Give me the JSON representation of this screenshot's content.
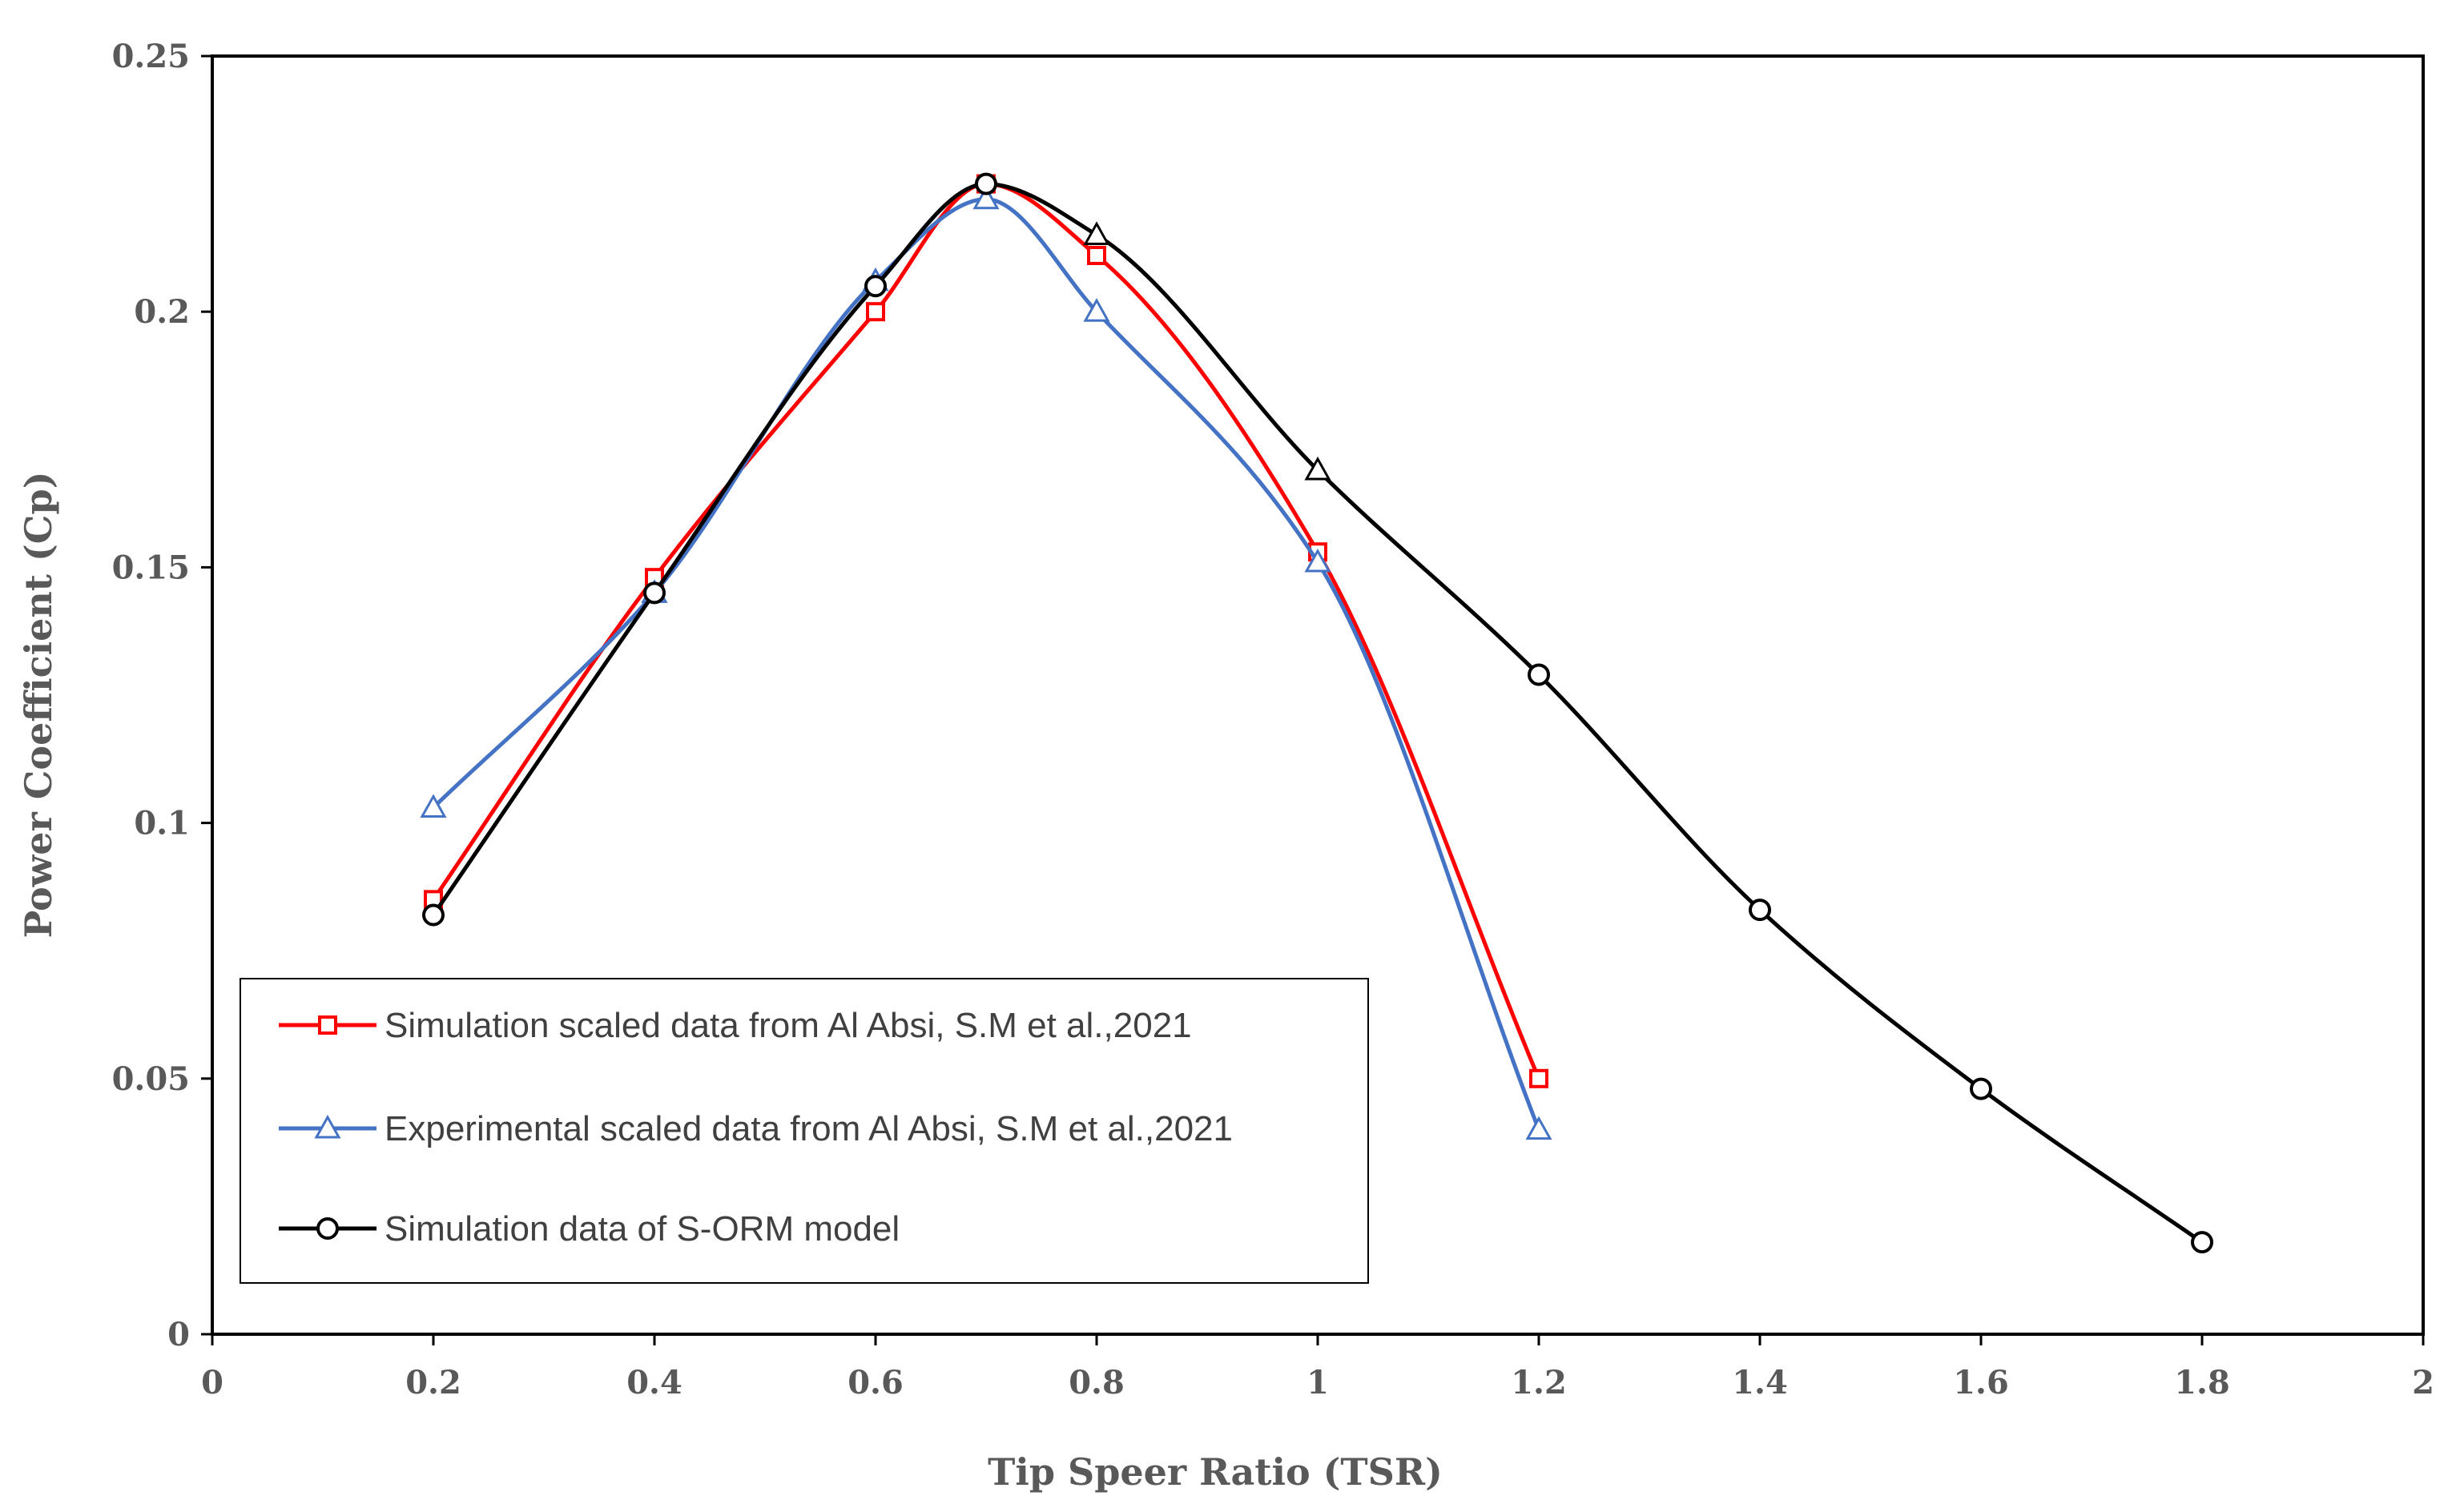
{
  "chart_data": {
    "type": "line",
    "title": "",
    "xlabel": "Tip Speer Ratio (TSR)",
    "ylabel": "Power Coefficient (Cp)",
    "xlim": [
      0,
      2
    ],
    "ylim": [
      0,
      0.25
    ],
    "x_ticks": [
      0,
      0.2,
      0.4,
      0.6,
      0.8,
      1,
      1.2,
      1.4,
      1.6,
      1.8,
      2
    ],
    "x_tick_labels": [
      "0",
      "0.2",
      "0.4",
      "0.6",
      "0.8",
      "1",
      "1.2",
      "1.4",
      "1.6",
      "1.8",
      "2"
    ],
    "y_ticks": [
      0,
      0.05,
      0.1,
      0.15,
      0.2,
      0.25
    ],
    "y_tick_labels": [
      "0",
      "0.05",
      "0.1",
      "0.15",
      "0.2",
      "0.25"
    ],
    "grid": false,
    "legend_position": "bottom-left",
    "series": [
      {
        "name": "Simulation scaled data from Al Absi, S.M et al.,2021",
        "color": "#ff0000",
        "marker": "square",
        "x": [
          0.2,
          0.4,
          0.6,
          0.7,
          0.8,
          1.0,
          1.2
        ],
        "y": [
          0.085,
          0.148,
          0.2,
          0.225,
          0.211,
          0.153,
          0.05
        ]
      },
      {
        "name": "Experimental scaled data from Al Absi, S.M et al.,2021",
        "color": "#4472c4",
        "marker": "triangle",
        "x": [
          0.2,
          0.4,
          0.6,
          0.7,
          0.8,
          1.0,
          1.2
        ],
        "y": [
          0.103,
          0.145,
          0.206,
          0.222,
          0.2,
          0.151,
          0.04
        ]
      },
      {
        "name": "Simulation data of S-ORM model",
        "color": "#000000",
        "marker": "mixed",
        "markers": [
          "circle",
          "circle",
          "circle",
          "circle",
          "triangle",
          "triangle",
          "circle",
          "circle",
          "circle",
          "circle"
        ],
        "x": [
          0.2,
          0.4,
          0.6,
          0.7,
          0.8,
          1.0,
          1.2,
          1.4,
          1.6,
          1.8
        ],
        "y": [
          0.082,
          0.145,
          0.205,
          0.225,
          0.215,
          0.169,
          0.129,
          0.083,
          0.048,
          0.018
        ]
      }
    ]
  }
}
